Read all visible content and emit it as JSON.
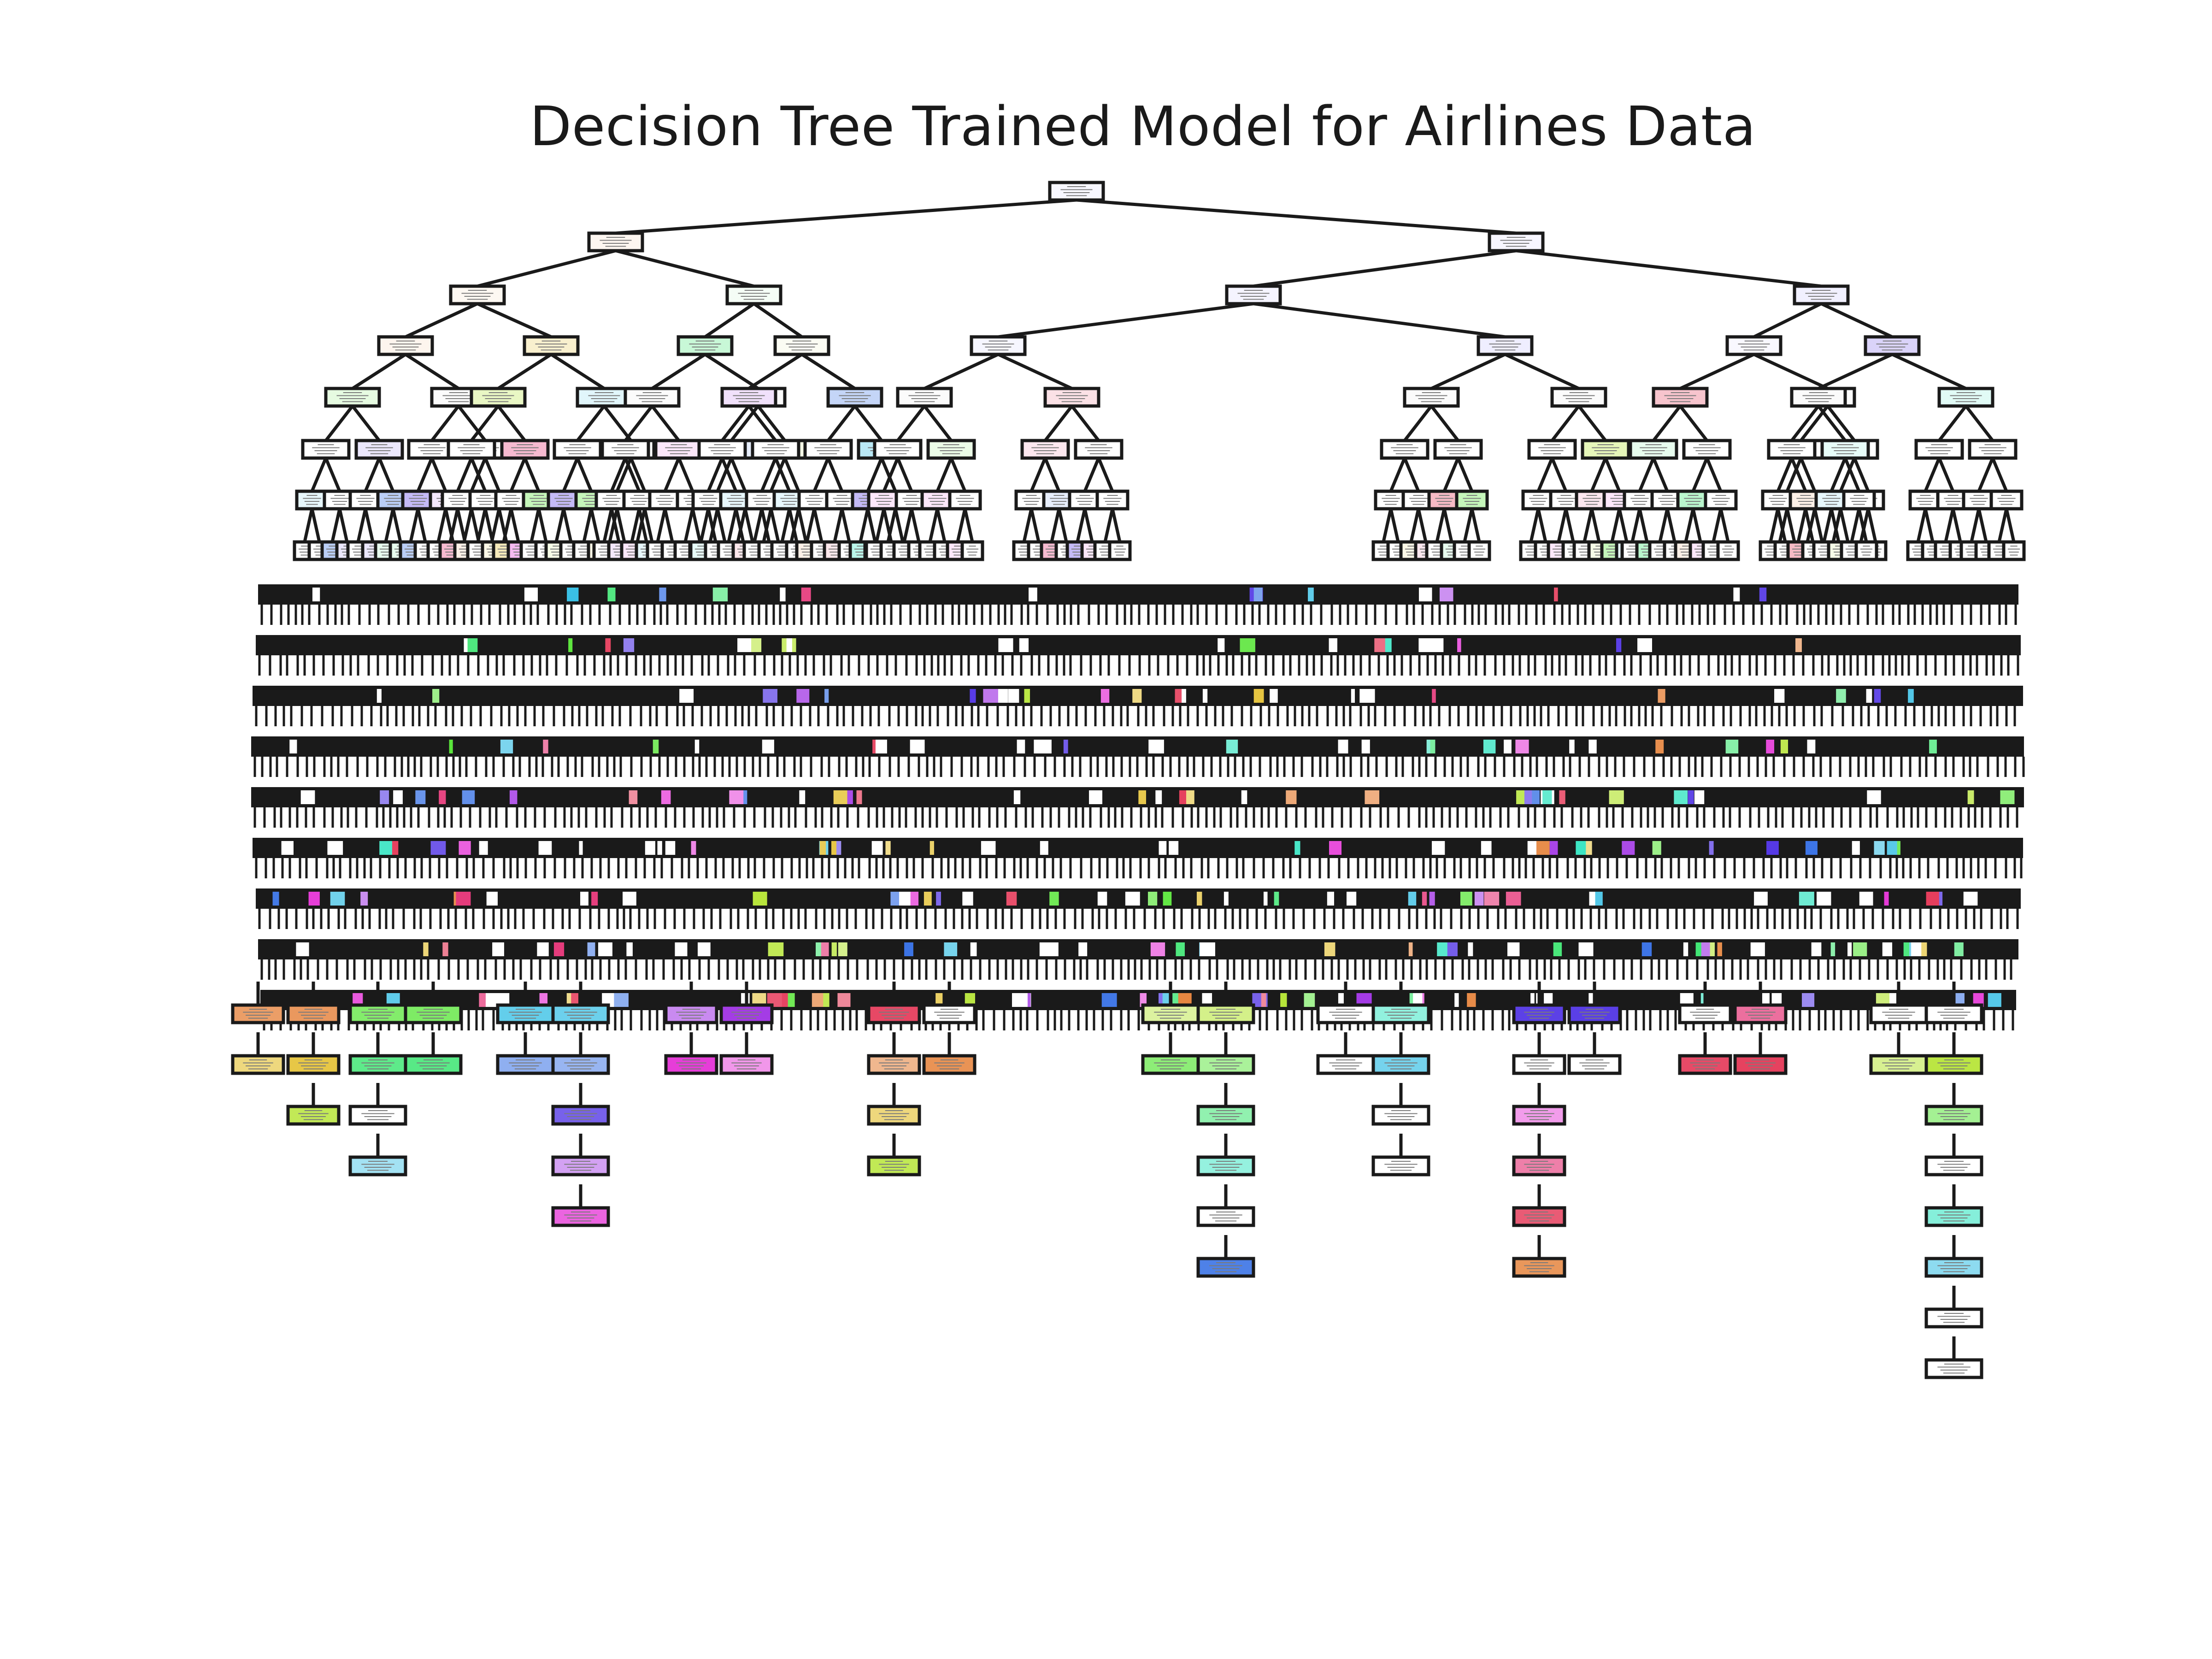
{
  "title": "Decision Tree Trained Model for Airlines Data",
  "colors": {
    "background": "#ffffff",
    "edge": "#1a1a1a",
    "node_border": "#1a1a1a",
    "dense_fill": "#1a1a1a",
    "leaf_palette": [
      "#e58139",
      "#e5c339",
      "#b7e539",
      "#59e539",
      "#39e56f",
      "#39e5c3",
      "#39c0e5",
      "#3972e5",
      "#5539e5",
      "#a339e5",
      "#e539d7",
      "#e5397a",
      "#e53958"
    ]
  }
}
